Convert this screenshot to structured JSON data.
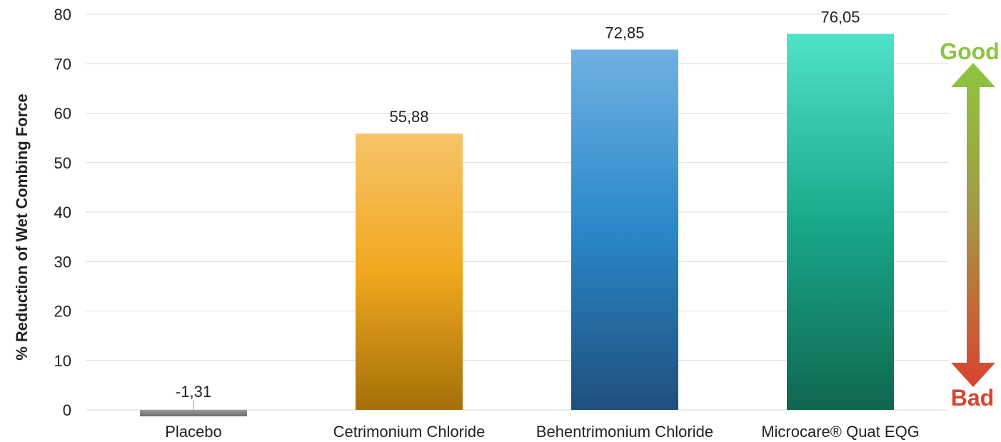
{
  "chart_data": {
    "type": "bar",
    "categories": [
      "Placebo",
      "Cetrimonium Chloride",
      "Behentrimonium Chloride",
      "Microcare® Quat EQG"
    ],
    "values": [
      -1.31,
      55.88,
      72.85,
      76.05
    ],
    "data_labels": [
      "-1,31",
      "55,88",
      "72,85",
      "76,05"
    ],
    "ylabel": "% Reduction of Wet Combing Force",
    "ylim": [
      0,
      80
    ],
    "yticks": [
      0,
      10,
      20,
      30,
      40,
      50,
      60,
      70,
      80
    ],
    "grid": true,
    "bar_colors": [
      [
        "#9a9a9a",
        "#6e6e6e"
      ],
      [
        "#f7c46a",
        "#f0a81e",
        "#a57009"
      ],
      [
        "#6fb1e3",
        "#2a87c8",
        "#1f4f7c"
      ],
      [
        "#4fe3c8",
        "#19a88a",
        "#0f6650"
      ]
    ]
  },
  "indicator": {
    "good_label": "Good",
    "bad_label": "Bad",
    "good_color": "#8cc63f",
    "bad_color": "#d9432f"
  }
}
